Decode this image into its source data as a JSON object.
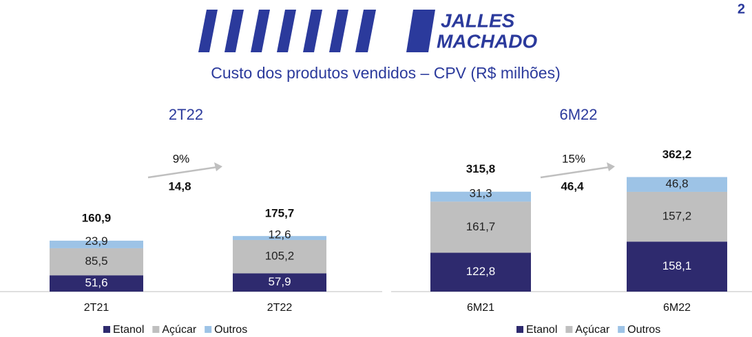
{
  "header": {
    "logo_line1": "JALLES",
    "logo_line2": "MACHADO",
    "title": "Custo dos produtos vendidos – CPV (R$ milhões)",
    "page": "2"
  },
  "chart_data": [
    {
      "type": "stacked_bar",
      "title": "2T22",
      "categories": [
        "2T21",
        "2T22"
      ],
      "series": [
        {
          "name": "Etanol",
          "color": "#2e2a6e",
          "values": [
            51.6,
            57.9
          ],
          "value_labels": [
            "51,6",
            "57,9"
          ]
        },
        {
          "name": "Açúcar",
          "color": "#bfbfbf",
          "values": [
            85.5,
            105.2
          ],
          "value_labels": [
            "85,5",
            "105,2"
          ]
        },
        {
          "name": "Outros",
          "color": "#9dc3e6",
          "values": [
            23.9,
            12.6
          ],
          "value_labels": [
            "23,9",
            "12,6"
          ]
        }
      ],
      "totals": [
        160.9,
        175.7
      ],
      "total_labels": [
        "160,9",
        "175,7"
      ],
      "growth": {
        "value": 9,
        "label": "9%"
      },
      "difference": {
        "value": 14.8,
        "label": "14,8"
      }
    },
    {
      "type": "stacked_bar",
      "title": "6M22",
      "categories": [
        "6M21",
        "6M22"
      ],
      "series": [
        {
          "name": "Etanol",
          "color": "#2e2a6e",
          "values": [
            122.8,
            158.1
          ],
          "value_labels": [
            "122,8",
            "158,1"
          ]
        },
        {
          "name": "Açúcar",
          "color": "#bfbfbf",
          "values": [
            161.7,
            157.2
          ],
          "value_labels": [
            "161,7",
            "157,2"
          ]
        },
        {
          "name": "Outros",
          "color": "#9dc3e6",
          "values": [
            31.3,
            46.8
          ],
          "value_labels": [
            "31,3",
            "46,8"
          ]
        }
      ],
      "totals": [
        315.8,
        362.2
      ],
      "total_labels": [
        "315,8",
        "362,2"
      ],
      "growth": {
        "value": 15,
        "label": "15%"
      },
      "difference": {
        "value": 46.4,
        "label": "46,4"
      }
    }
  ]
}
